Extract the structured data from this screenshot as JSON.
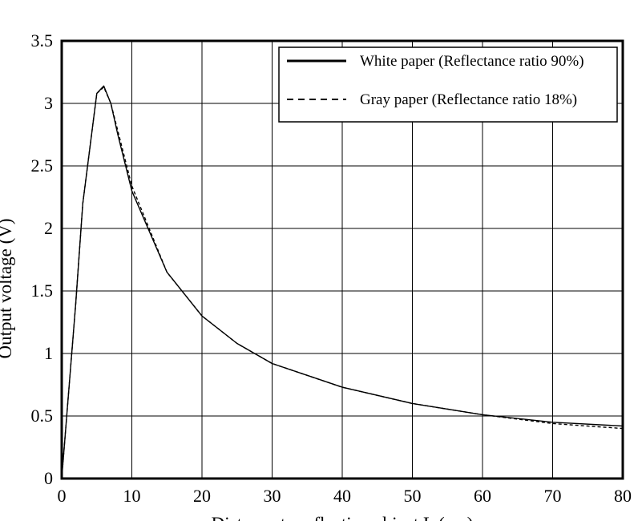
{
  "chart_data": {
    "type": "line",
    "title": "",
    "xlabel": "Distance to reflective object L (cm)",
    "ylabel": "Output voltage (V)",
    "xlim": [
      0,
      80
    ],
    "ylim": [
      0,
      3.5
    ],
    "xticks": [
      0,
      10,
      20,
      30,
      40,
      50,
      60,
      70,
      80
    ],
    "yticks": [
      0,
      0.5,
      1,
      1.5,
      2,
      2.5,
      3,
      3.5
    ],
    "xtick_labels": [
      "0",
      "10",
      "20",
      "30",
      "40",
      "50",
      "60",
      "70",
      "80"
    ],
    "ytick_labels": [
      "0",
      "0.5",
      "1",
      "1.5",
      "2",
      "2.5",
      "3",
      "3.5"
    ],
    "grid": true,
    "legend_position": "top-right",
    "series": [
      {
        "name": "White paper (Reflectance ratio 90%)",
        "style": "solid",
        "color": "#000000",
        "x": [
          0,
          2,
          3,
          5,
          6,
          7,
          8,
          10,
          15,
          20,
          25,
          30,
          40,
          50,
          60,
          70,
          80
        ],
        "y": [
          0,
          1.4,
          2.2,
          3.08,
          3.14,
          3.0,
          2.75,
          2.3,
          1.65,
          1.3,
          1.08,
          0.92,
          0.73,
          0.6,
          0.51,
          0.45,
          0.42
        ]
      },
      {
        "name": "Gray paper (Reflectance ratio 18%)",
        "style": "dashed",
        "color": "#000000",
        "x": [
          0,
          2,
          3,
          5,
          6,
          7,
          8,
          10,
          15,
          20,
          25,
          30,
          40,
          50,
          60,
          70,
          80
        ],
        "y": [
          0,
          1.4,
          2.2,
          3.08,
          3.13,
          3.0,
          2.78,
          2.34,
          1.65,
          1.3,
          1.08,
          0.92,
          0.73,
          0.6,
          0.51,
          0.44,
          0.4
        ]
      }
    ]
  }
}
